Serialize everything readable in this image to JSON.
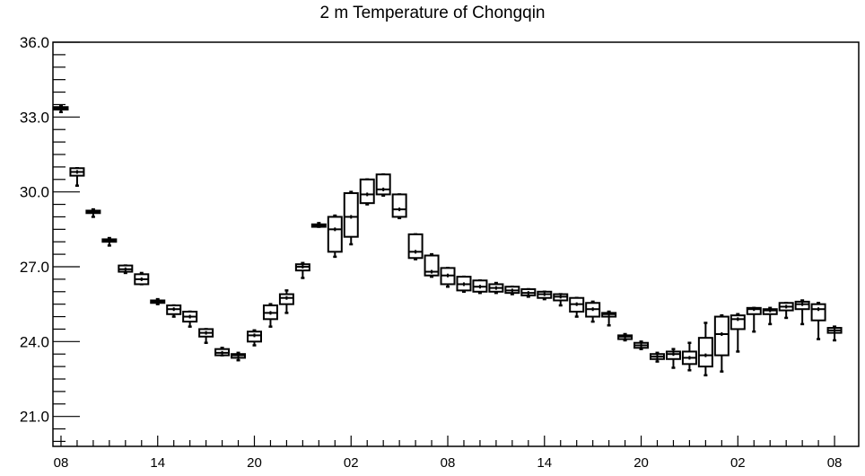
{
  "chart_data": {
    "type": "box",
    "title": "2 m Temperature of Chongqin",
    "xlabel": "",
    "ylabel": "",
    "ylim": [
      19.8,
      36.0
    ],
    "xlim": [
      -0.5,
      49.5
    ],
    "y_ticks": [
      "21.0",
      "24.0",
      "27.0",
      "30.0",
      "33.0",
      "36.0"
    ],
    "x_ticks": [
      {
        "x": 0,
        "label": "08"
      },
      {
        "x": 6,
        "label": "14"
      },
      {
        "x": 12,
        "label": "20"
      },
      {
        "x": 18,
        "label": "02"
      },
      {
        "x": 24,
        "label": "08"
      },
      {
        "x": 30,
        "label": "14"
      },
      {
        "x": 36,
        "label": "20"
      },
      {
        "x": 42,
        "label": "02"
      },
      {
        "x": 48,
        "label": "08"
      }
    ],
    "grid": false,
    "boxes": [
      {
        "x": 0,
        "min": 33.2,
        "q1": 33.3,
        "median": 33.35,
        "q3": 33.4,
        "max": 33.45
      },
      {
        "x": 1,
        "min": 30.25,
        "q1": 30.65,
        "median": 30.8,
        "q3": 30.95,
        "max": 30.95
      },
      {
        "x": 2,
        "min": 29.0,
        "q1": 29.15,
        "median": 29.2,
        "q3": 29.25,
        "max": 29.3
      },
      {
        "x": 3,
        "min": 27.85,
        "q1": 28.0,
        "median": 28.05,
        "q3": 28.1,
        "max": 28.15
      },
      {
        "x": 4,
        "min": 26.75,
        "q1": 26.8,
        "median": 26.9,
        "q3": 27.05,
        "max": 27.05
      },
      {
        "x": 5,
        "min": 26.3,
        "q1": 26.3,
        "median": 26.5,
        "q3": 26.7,
        "max": 26.75
      },
      {
        "x": 6,
        "min": 25.5,
        "q1": 25.55,
        "median": 25.6,
        "q3": 25.65,
        "max": 25.7
      },
      {
        "x": 7,
        "min": 25.0,
        "q1": 25.1,
        "median": 25.3,
        "q3": 25.45,
        "max": 25.45
      },
      {
        "x": 8,
        "min": 24.6,
        "q1": 24.8,
        "median": 25.0,
        "q3": 25.2,
        "max": 25.2
      },
      {
        "x": 9,
        "min": 23.95,
        "q1": 24.2,
        "median": 24.35,
        "q3": 24.5,
        "max": 24.5
      },
      {
        "x": 10,
        "min": 23.45,
        "q1": 23.45,
        "median": 23.55,
        "q3": 23.7,
        "max": 23.75
      },
      {
        "x": 11,
        "min": 23.25,
        "q1": 23.35,
        "median": 23.45,
        "q3": 23.5,
        "max": 23.55
      },
      {
        "x": 12,
        "min": 23.85,
        "q1": 24.0,
        "median": 24.25,
        "q3": 24.4,
        "max": 24.45
      },
      {
        "x": 13,
        "min": 24.6,
        "q1": 24.9,
        "median": 25.15,
        "q3": 25.45,
        "max": 25.5
      },
      {
        "x": 14,
        "min": 25.15,
        "q1": 25.5,
        "median": 25.75,
        "q3": 25.9,
        "max": 26.05
      },
      {
        "x": 15,
        "min": 26.55,
        "q1": 26.85,
        "median": 27.0,
        "q3": 27.1,
        "max": 27.15
      },
      {
        "x": 16,
        "min": 28.6,
        "q1": 28.6,
        "median": 28.65,
        "q3": 28.7,
        "max": 28.75
      },
      {
        "x": 17,
        "min": 27.4,
        "q1": 27.6,
        "median": 28.5,
        "q3": 29.0,
        "max": 29.05
      },
      {
        "x": 18,
        "min": 27.9,
        "q1": 28.2,
        "median": 29.0,
        "q3": 29.95,
        "max": 30.0
      },
      {
        "x": 19,
        "min": 29.5,
        "q1": 29.55,
        "median": 29.9,
        "q3": 30.5,
        "max": 30.5
      },
      {
        "x": 20,
        "min": 29.85,
        "q1": 29.9,
        "median": 30.1,
        "q3": 30.7,
        "max": 30.7
      },
      {
        "x": 21,
        "min": 28.95,
        "q1": 29.0,
        "median": 29.3,
        "q3": 29.9,
        "max": 29.9
      },
      {
        "x": 22,
        "min": 27.3,
        "q1": 27.35,
        "median": 27.6,
        "q3": 28.3,
        "max": 28.3
      },
      {
        "x": 23,
        "min": 26.6,
        "q1": 26.65,
        "median": 26.8,
        "q3": 27.45,
        "max": 27.5
      },
      {
        "x": 24,
        "min": 26.2,
        "q1": 26.3,
        "median": 26.65,
        "q3": 26.95,
        "max": 26.95
      },
      {
        "x": 25,
        "min": 26.0,
        "q1": 26.05,
        "median": 26.3,
        "q3": 26.6,
        "max": 26.6
      },
      {
        "x": 26,
        "min": 25.95,
        "q1": 26.0,
        "median": 26.2,
        "q3": 26.45,
        "max": 26.45
      },
      {
        "x": 27,
        "min": 25.95,
        "q1": 26.0,
        "median": 26.15,
        "q3": 26.3,
        "max": 26.35
      },
      {
        "x": 28,
        "min": 25.9,
        "q1": 25.95,
        "median": 26.05,
        "q3": 26.2,
        "max": 26.2
      },
      {
        "x": 29,
        "min": 25.8,
        "q1": 25.85,
        "median": 25.95,
        "q3": 26.1,
        "max": 26.1
      },
      {
        "x": 30,
        "min": 25.7,
        "q1": 25.75,
        "median": 25.9,
        "q3": 26.0,
        "max": 26.0
      },
      {
        "x": 31,
        "min": 25.45,
        "q1": 25.65,
        "median": 25.8,
        "q3": 25.9,
        "max": 25.9
      },
      {
        "x": 32,
        "min": 25.0,
        "q1": 25.2,
        "median": 25.5,
        "q3": 25.75,
        "max": 25.75
      },
      {
        "x": 33,
        "min": 24.8,
        "q1": 25.0,
        "median": 25.3,
        "q3": 25.55,
        "max": 25.6
      },
      {
        "x": 34,
        "min": 24.65,
        "q1": 25.0,
        "median": 25.1,
        "q3": 25.15,
        "max": 25.2
      },
      {
        "x": 35,
        "min": 24.05,
        "q1": 24.1,
        "median": 24.2,
        "q3": 24.25,
        "max": 24.3
      },
      {
        "x": 36,
        "min": 23.7,
        "q1": 23.75,
        "median": 23.85,
        "q3": 23.95,
        "max": 24.0
      },
      {
        "x": 37,
        "min": 23.2,
        "q1": 23.3,
        "median": 23.4,
        "q3": 23.5,
        "max": 23.55
      },
      {
        "x": 38,
        "min": 22.95,
        "q1": 23.3,
        "median": 23.5,
        "q3": 23.6,
        "max": 23.7
      },
      {
        "x": 39,
        "min": 22.85,
        "q1": 23.1,
        "median": 23.35,
        "q3": 23.6,
        "max": 23.95
      },
      {
        "x": 40,
        "min": 22.65,
        "q1": 23.0,
        "median": 23.45,
        "q3": 24.15,
        "max": 24.75
      },
      {
        "x": 41,
        "min": 22.8,
        "q1": 23.45,
        "median": 24.3,
        "q3": 25.0,
        "max": 25.05
      },
      {
        "x": 42,
        "min": 23.6,
        "q1": 24.5,
        "median": 24.9,
        "q3": 25.05,
        "max": 25.1
      },
      {
        "x": 43,
        "min": 24.4,
        "q1": 25.1,
        "median": 25.3,
        "q3": 25.35,
        "max": 25.35
      },
      {
        "x": 44,
        "min": 24.7,
        "q1": 25.1,
        "median": 25.25,
        "q3": 25.3,
        "max": 25.35
      },
      {
        "x": 45,
        "min": 24.95,
        "q1": 25.25,
        "median": 25.4,
        "q3": 25.55,
        "max": 25.55
      },
      {
        "x": 46,
        "min": 24.7,
        "q1": 25.3,
        "median": 25.5,
        "q3": 25.6,
        "max": 25.65
      },
      {
        "x": 47,
        "min": 24.1,
        "q1": 24.85,
        "median": 25.3,
        "q3": 25.5,
        "max": 25.55
      },
      {
        "x": 48,
        "min": 24.05,
        "q1": 24.35,
        "median": 24.45,
        "q3": 24.55,
        "max": 24.6
      }
    ]
  }
}
